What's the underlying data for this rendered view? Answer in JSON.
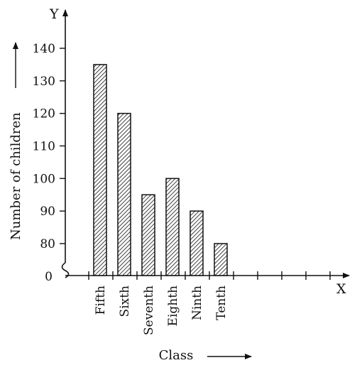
{
  "chart_data": {
    "type": "bar",
    "title": "",
    "xlabel": "Class",
    "ylabel": "Number of children",
    "x_axis_letter": "X",
    "y_axis_letter": "Y",
    "origin_label": "0",
    "categories": [
      "Fifth",
      "Sixth",
      "Seventh",
      "Eighth",
      "Ninth",
      "Tenth"
    ],
    "values": [
      135,
      120,
      95,
      100,
      90,
      80
    ],
    "y_ticks": [
      80,
      90,
      100,
      110,
      120,
      130,
      140
    ],
    "ylim": [
      70,
      145
    ],
    "y_axis_break": true,
    "bar_fill": "diagonal-hatch",
    "colors": {
      "ink": "#111111",
      "background": "#ffffff"
    },
    "grid": false,
    "legend": "none"
  }
}
